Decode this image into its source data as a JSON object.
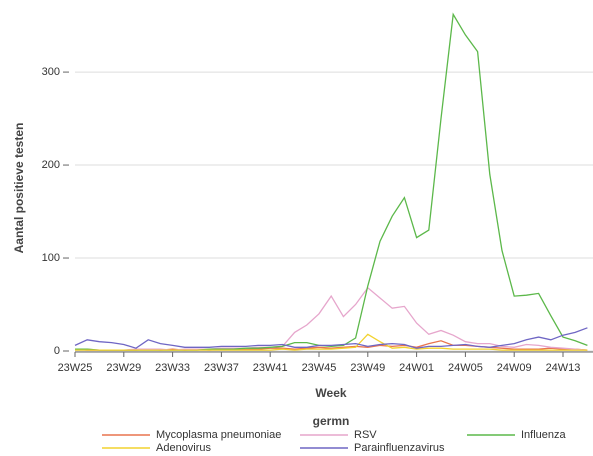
{
  "chart_data": {
    "type": "line",
    "x_label": "Week",
    "y_label": "Aantal positieve testen",
    "legend_title": "germn",
    "categories": [
      "23W25",
      null,
      null,
      null,
      "23W29",
      null,
      null,
      null,
      "23W33",
      null,
      null,
      null,
      "23W37",
      null,
      null,
      null,
      "23W41",
      null,
      null,
      null,
      "23W45",
      null,
      null,
      null,
      "23W49",
      null,
      null,
      null,
      "24W01",
      null,
      null,
      null,
      "24W05",
      null,
      null,
      null,
      "24W09",
      null,
      null,
      null,
      "24W13",
      null,
      null
    ],
    "ylim": [
      0,
      370
    ],
    "yticks": [
      0,
      100,
      200,
      300
    ],
    "grid": true,
    "series": [
      {
        "name": "Mycoplasma pneumoniae",
        "color": "#e8744f",
        "values": [
          2,
          1,
          1,
          1,
          1,
          1,
          2,
          1,
          2,
          1,
          2,
          1,
          2,
          2,
          2,
          2,
          3,
          3,
          2,
          3,
          4,
          3,
          4,
          5,
          4,
          6,
          5,
          6,
          4,
          8,
          11,
          6,
          6,
          5,
          4,
          3,
          2,
          2,
          2,
          3,
          2,
          2,
          1
        ]
      },
      {
        "name": "RSV",
        "color": "#e6a6cc",
        "values": [
          2,
          2,
          1,
          1,
          1,
          2,
          2,
          2,
          1,
          2,
          2,
          2,
          3,
          3,
          3,
          4,
          4,
          5,
          20,
          28,
          40,
          59,
          37,
          50,
          68,
          57,
          46,
          48,
          30,
          18,
          22,
          17,
          10,
          8,
          8,
          5,
          4,
          7,
          6,
          4,
          3,
          2,
          1
        ]
      },
      {
        "name": "Influenza",
        "color": "#5cb84a",
        "values": [
          2,
          2,
          1,
          1,
          1,
          1,
          1,
          1,
          1,
          1,
          1,
          2,
          2,
          2,
          3,
          3,
          4,
          5,
          9,
          9,
          6,
          5,
          6,
          14,
          70,
          118,
          145,
          165,
          122,
          130,
          250,
          362,
          340,
          322,
          190,
          108,
          59,
          60,
          62,
          38,
          15,
          11,
          6
        ]
      },
      {
        "name": "Adenovirus",
        "color": "#f2d22e",
        "values": [
          1,
          1,
          1,
          1,
          1,
          1,
          1,
          1,
          1,
          1,
          1,
          1,
          1,
          1,
          1,
          1,
          1,
          2,
          1,
          2,
          2,
          2,
          3,
          4,
          18,
          10,
          3,
          4,
          2,
          3,
          3,
          2,
          2,
          2,
          2,
          1,
          1,
          1,
          1,
          1,
          1,
          1,
          1
        ]
      },
      {
        "name": "Parainfluenzavirus",
        "color": "#6f66c4",
        "values": [
          6,
          12,
          10,
          9,
          7,
          3,
          12,
          8,
          6,
          4,
          4,
          4,
          5,
          5,
          5,
          6,
          6,
          7,
          4,
          4,
          6,
          6,
          7,
          8,
          5,
          7,
          8,
          7,
          3,
          5,
          5,
          6,
          7,
          5,
          4,
          6,
          8,
          12,
          15,
          12,
          17,
          20,
          25
        ]
      }
    ]
  }
}
